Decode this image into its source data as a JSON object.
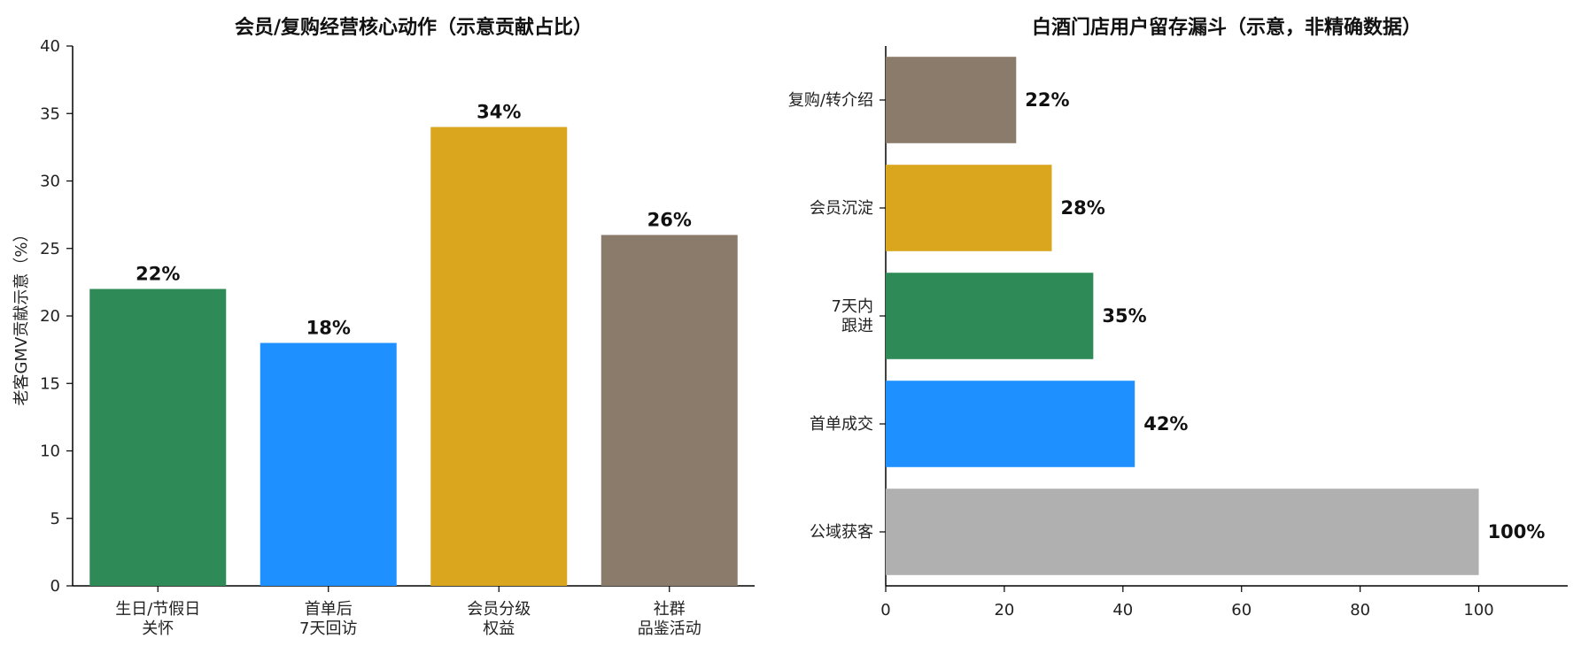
{
  "chart_data": [
    {
      "type": "bar",
      "title": "会员/复购经营核心动作（示意贡献占比）",
      "xlabel": "",
      "ylabel": "老客GMV贡献示意（%）",
      "categories": [
        [
          "生日/节假日",
          "关怀"
        ],
        [
          "首单后",
          "7天回访"
        ],
        [
          "会员分级",
          "权益"
        ],
        [
          "社群",
          "品鉴活动"
        ]
      ],
      "values": [
        22,
        18,
        34,
        26
      ],
      "value_labels": [
        "22%",
        "18%",
        "34%",
        "26%"
      ],
      "colors": [
        "#2e8b57",
        "#1e90ff",
        "#d9a61e",
        "#8b7b6b"
      ],
      "ylim": [
        0,
        40
      ],
      "yticks": [
        0,
        5,
        10,
        15,
        20,
        25,
        30,
        35,
        40
      ],
      "grid": false
    },
    {
      "type": "bar",
      "orientation": "horizontal",
      "title": "白酒门店用户留存漏斗（示意，非精确数据）",
      "xlabel": "",
      "ylabel": "",
      "categories": [
        [
          "公域获客"
        ],
        [
          "首单成交"
        ],
        [
          "7天内",
          "跟进"
        ],
        [
          "会员沉淀"
        ],
        [
          "复购/转介绍"
        ]
      ],
      "values": [
        100,
        42,
        35,
        28,
        22
      ],
      "value_labels": [
        "100%",
        "42%",
        "35%",
        "28%",
        "22%"
      ],
      "colors": [
        "#b0b0b0",
        "#1e90ff",
        "#2e8b57",
        "#d9a61e",
        "#8b7b6b"
      ],
      "xlim": [
        0,
        115
      ],
      "xticks": [
        0,
        20,
        40,
        60,
        80,
        100
      ],
      "grid": false
    }
  ]
}
